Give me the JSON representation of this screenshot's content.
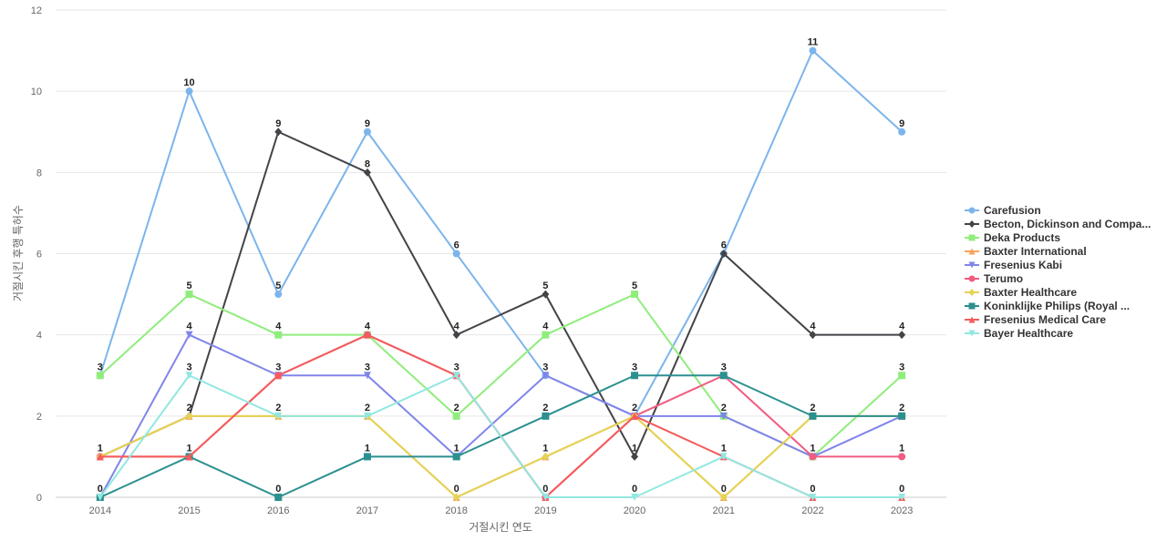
{
  "chart_data": {
    "type": "line",
    "xlabel": "거절시킨 연도",
    "ylabel": "거절시킨 후행 특허수",
    "ylim": [
      0,
      12
    ],
    "yticks": [
      0,
      2,
      4,
      6,
      8,
      10,
      12
    ],
    "grid": true,
    "legend_position": "right",
    "categories": [
      "2014",
      "2015",
      "2016",
      "2017",
      "2018",
      "2019",
      "2020",
      "2021",
      "2022",
      "2023"
    ],
    "series": [
      {
        "name": "Carefusion",
        "color": "#7cb5ec",
        "marker": "circle",
        "values": [
          3,
          10,
          5,
          9,
          6,
          3,
          2,
          6,
          11,
          9
        ]
      },
      {
        "name": "Becton, Dickinson and Compa...",
        "color": "#434348",
        "marker": "diamond",
        "values": [
          1,
          2,
          9,
          8,
          4,
          5,
          1,
          6,
          4,
          4
        ]
      },
      {
        "name": "Deka Products",
        "color": "#90ed7d",
        "marker": "square",
        "values": [
          3,
          5,
          4,
          4,
          2,
          4,
          5,
          2,
          1,
          3
        ]
      },
      {
        "name": "Baxter International",
        "color": "#f7a35c",
        "marker": "triangle",
        "values": [
          1,
          2,
          2,
          2,
          0,
          1,
          2,
          0,
          2,
          2
        ]
      },
      {
        "name": "Fresenius Kabi",
        "color": "#8085e9",
        "marker": "triangle-down",
        "values": [
          0,
          4,
          3,
          3,
          1,
          3,
          2,
          2,
          1,
          2
        ]
      },
      {
        "name": "Terumo",
        "color": "#f15c80",
        "marker": "circle",
        "values": [
          1,
          1,
          3,
          4,
          3,
          0,
          2,
          3,
          1,
          1
        ]
      },
      {
        "name": "Baxter Healthcare",
        "color": "#e4d354",
        "marker": "diamond",
        "values": [
          1,
          2,
          2,
          2,
          0,
          1,
          2,
          0,
          2,
          2
        ]
      },
      {
        "name": "Koninklijke Philips (Royal ...",
        "color": "#2b908f",
        "marker": "square",
        "values": [
          0,
          1,
          0,
          1,
          1,
          2,
          3,
          3,
          2,
          2
        ]
      },
      {
        "name": "Fresenius Medical Care",
        "color": "#f45b5b",
        "marker": "triangle",
        "values": [
          1,
          1,
          3,
          4,
          3,
          0,
          2,
          1,
          0,
          0
        ]
      },
      {
        "name": "Bayer Healthcare",
        "color": "#91e8e1",
        "marker": "triangle-down",
        "values": [
          0,
          3,
          2,
          2,
          3,
          0,
          0,
          1,
          0,
          0
        ]
      }
    ],
    "data_labels": [
      {
        "value": "0",
        "x": "2014",
        "y": 0
      },
      {
        "value": "1",
        "x": "2014",
        "y": 1
      },
      {
        "value": "3",
        "x": "2014",
        "y": 3
      },
      {
        "value": "1",
        "x": "2015",
        "y": 1
      },
      {
        "value": "2",
        "x": "2015",
        "y": 2
      },
      {
        "value": "3",
        "x": "2015",
        "y": 3
      },
      {
        "value": "4",
        "x": "2015",
        "y": 4
      },
      {
        "value": "5",
        "x": "2015",
        "y": 5
      },
      {
        "value": "10",
        "x": "2015",
        "y": 10
      },
      {
        "value": "0",
        "x": "2016",
        "y": 0
      },
      {
        "value": "2",
        "x": "2016",
        "y": 2
      },
      {
        "value": "3",
        "x": "2016",
        "y": 3
      },
      {
        "value": "4",
        "x": "2016",
        "y": 4
      },
      {
        "value": "5",
        "x": "2016",
        "y": 5
      },
      {
        "value": "9",
        "x": "2016",
        "y": 9
      },
      {
        "value": "1",
        "x": "2017",
        "y": 1
      },
      {
        "value": "2",
        "x": "2017",
        "y": 2
      },
      {
        "value": "3",
        "x": "2017",
        "y": 3
      },
      {
        "value": "4",
        "x": "2017",
        "y": 4
      },
      {
        "value": "8",
        "x": "2017",
        "y": 8
      },
      {
        "value": "9",
        "x": "2017",
        "y": 9
      },
      {
        "value": "0",
        "x": "2018",
        "y": 0
      },
      {
        "value": "1",
        "x": "2018",
        "y": 1
      },
      {
        "value": "2",
        "x": "2018",
        "y": 2
      },
      {
        "value": "3",
        "x": "2018",
        "y": 3
      },
      {
        "value": "4",
        "x": "2018",
        "y": 4
      },
      {
        "value": "6",
        "x": "2018",
        "y": 6
      },
      {
        "value": "0",
        "x": "2019",
        "y": 0
      },
      {
        "value": "1",
        "x": "2019",
        "y": 1
      },
      {
        "value": "2",
        "x": "2019",
        "y": 2
      },
      {
        "value": "3",
        "x": "2019",
        "y": 3
      },
      {
        "value": "4",
        "x": "2019",
        "y": 4
      },
      {
        "value": "5",
        "x": "2019",
        "y": 5
      },
      {
        "value": "0",
        "x": "2020",
        "y": 0
      },
      {
        "value": "1",
        "x": "2020",
        "y": 1
      },
      {
        "value": "2",
        "x": "2020",
        "y": 2
      },
      {
        "value": "3",
        "x": "2020",
        "y": 3
      },
      {
        "value": "5",
        "x": "2020",
        "y": 5
      },
      {
        "value": "0",
        "x": "2021",
        "y": 0
      },
      {
        "value": "1",
        "x": "2021",
        "y": 1
      },
      {
        "value": "2",
        "x": "2021",
        "y": 2
      },
      {
        "value": "3",
        "x": "2021",
        "y": 3
      },
      {
        "value": "6",
        "x": "2021",
        "y": 6
      },
      {
        "value": "0",
        "x": "2022",
        "y": 0
      },
      {
        "value": "1",
        "x": "2022",
        "y": 1
      },
      {
        "value": "2",
        "x": "2022",
        "y": 2
      },
      {
        "value": "4",
        "x": "2022",
        "y": 4
      },
      {
        "value": "11",
        "x": "2022",
        "y": 11
      },
      {
        "value": "0",
        "x": "2023",
        "y": 0
      },
      {
        "value": "1",
        "x": "2023",
        "y": 1
      },
      {
        "value": "2",
        "x": "2023",
        "y": 2
      },
      {
        "value": "3",
        "x": "2023",
        "y": 3
      },
      {
        "value": "4",
        "x": "2023",
        "y": 4
      },
      {
        "value": "9",
        "x": "2023",
        "y": 9
      }
    ]
  }
}
